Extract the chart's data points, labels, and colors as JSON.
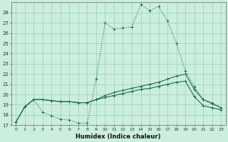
{
  "title": "",
  "xlabel": "Humidex (Indice chaleur)",
  "ylabel": "",
  "bg_color": "#cceedd",
  "grid_color": "#99ccbb",
  "line_color": "#1a6b5a",
  "xlim": [
    -0.5,
    23.5
  ],
  "ylim": [
    17,
    29
  ],
  "yticks": [
    17,
    18,
    19,
    20,
    21,
    22,
    23,
    24,
    25,
    26,
    27,
    28
  ],
  "xticks": [
    0,
    1,
    2,
    3,
    4,
    5,
    6,
    7,
    8,
    9,
    10,
    11,
    12,
    13,
    14,
    15,
    16,
    17,
    18,
    19,
    20,
    21,
    22,
    23
  ],
  "series1_x": [
    0,
    1,
    2,
    3,
    4,
    5,
    6,
    7,
    8,
    9,
    10,
    11,
    12,
    13,
    14,
    15,
    16,
    17,
    18,
    19,
    20,
    21,
    22,
    23
  ],
  "series1_y": [
    17.3,
    18.8,
    19.5,
    18.3,
    17.9,
    17.6,
    17.5,
    17.2,
    17.2,
    21.5,
    27.0,
    26.4,
    26.5,
    26.6,
    28.8,
    28.2,
    28.6,
    27.2,
    25.0,
    22.3,
    20.8,
    19.5,
    19.2,
    18.7
  ],
  "series2_x": [
    0,
    1,
    2,
    3,
    4,
    5,
    6,
    7,
    8,
    9,
    10,
    11,
    12,
    13,
    14,
    15,
    16,
    17,
    18,
    19,
    20,
    21,
    22,
    23
  ],
  "series2_y": [
    17.3,
    18.8,
    19.5,
    19.5,
    19.4,
    19.3,
    19.3,
    19.2,
    19.2,
    19.5,
    19.9,
    20.2,
    20.4,
    20.6,
    20.8,
    21.0,
    21.2,
    21.5,
    21.8,
    22.0,
    20.5,
    19.5,
    19.1,
    18.7
  ],
  "series3_x": [
    0,
    1,
    2,
    3,
    4,
    5,
    6,
    7,
    8,
    9,
    10,
    11,
    12,
    13,
    14,
    15,
    16,
    17,
    18,
    19,
    20,
    21,
    22,
    23
  ],
  "series3_y": [
    17.3,
    18.8,
    19.5,
    19.5,
    19.4,
    19.3,
    19.3,
    19.2,
    19.2,
    19.5,
    19.7,
    19.9,
    20.1,
    20.3,
    20.5,
    20.6,
    20.8,
    21.0,
    21.2,
    21.3,
    19.8,
    18.9,
    18.7,
    18.5
  ]
}
